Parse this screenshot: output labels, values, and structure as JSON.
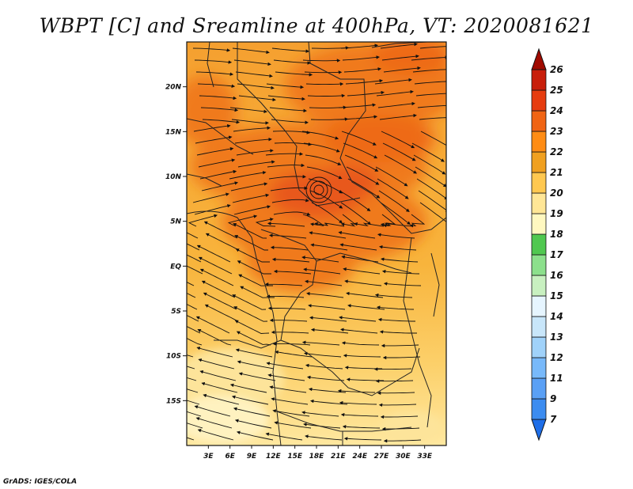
{
  "title": "WBPT [C] and Sreamline at 400hPa, VT: 2020081621",
  "credit": "GrADS: IGES/COLA",
  "map": {
    "lon_range": [
      0,
      36
    ],
    "lat_range": [
      -20,
      25
    ],
    "lat_ticks": [
      {
        "value": 20,
        "label": "20N"
      },
      {
        "value": 15,
        "label": "15N"
      },
      {
        "value": 10,
        "label": "10N"
      },
      {
        "value": 5,
        "label": "5N"
      },
      {
        "value": 0,
        "label": "EQ"
      },
      {
        "value": -5,
        "label": "5S"
      },
      {
        "value": -10,
        "label": "10S"
      },
      {
        "value": -15,
        "label": "15S"
      }
    ],
    "lon_ticks": [
      {
        "value": 3,
        "label": "3E"
      },
      {
        "value": 6,
        "label": "6E"
      },
      {
        "value": 9,
        "label": "9E"
      },
      {
        "value": 12,
        "label": "12E"
      },
      {
        "value": 15,
        "label": "15E"
      },
      {
        "value": 18,
        "label": "18E"
      },
      {
        "value": 21,
        "label": "21E"
      },
      {
        "value": 24,
        "label": "24E"
      },
      {
        "value": 27,
        "label": "27E"
      },
      {
        "value": 30,
        "label": "30E"
      },
      {
        "value": 33,
        "label": "33E"
      }
    ]
  },
  "colorbar": {
    "labels": [
      "7",
      "9",
      "11",
      "12",
      "13",
      "14",
      "15",
      "16",
      "17",
      "18",
      "19",
      "20",
      "21",
      "22",
      "23",
      "24",
      "25",
      "26"
    ],
    "colors": [
      "#1e6ee8",
      "#3c8cf0",
      "#5aa0f5",
      "#78b9fa",
      "#a0d2fa",
      "#c8e6fa",
      "#e6f5ff",
      "#c8f0c0",
      "#8ce08c",
      "#50c850",
      "#fff8c0",
      "#ffe696",
      "#ffc850",
      "#f0a020",
      "#ff8c14",
      "#f06414",
      "#e63c0f",
      "#c81e0a",
      "#a00a00"
    ]
  }
}
